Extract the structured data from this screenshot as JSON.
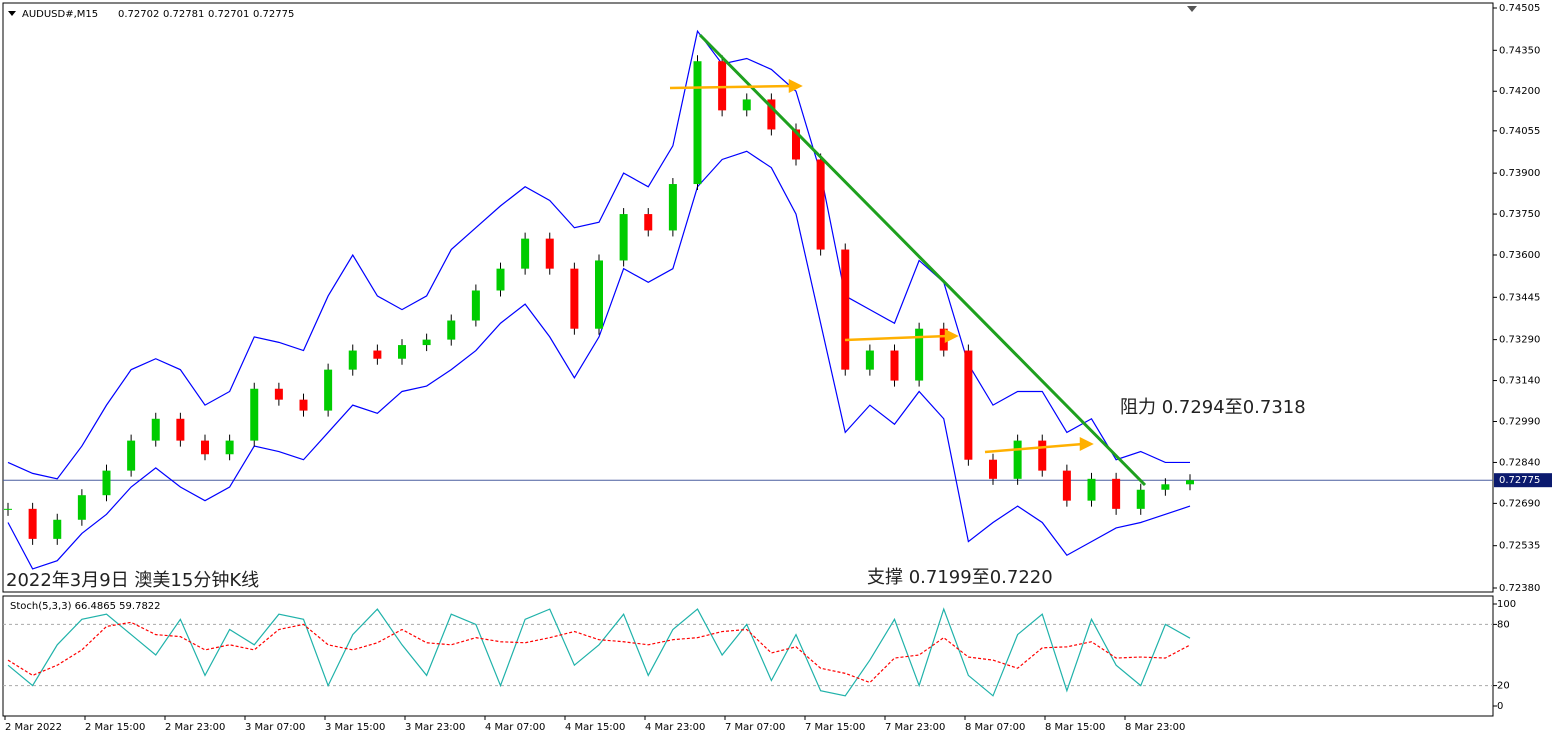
{
  "chart_data": [
    {
      "type": "candlestick",
      "title": "AUDUSD#,M15",
      "ohlc": [
        0.72702,
        0.72781,
        0.72701,
        0.72775
      ],
      "subtitle": "2022年3月9日 澳美15分钟K线",
      "annotations": [
        "阻力 0.7294至0.7318",
        "支撑 0.7199至0.7220"
      ],
      "last_price": 0.72775,
      "close": [
        0.7267,
        0.7256,
        0.7263,
        0.7272,
        0.7281,
        0.7292,
        0.73,
        0.7292,
        0.7287,
        0.7292,
        0.7311,
        0.7307,
        0.7303,
        0.7318,
        0.7325,
        0.7322,
        0.7327,
        0.7329,
        0.7336,
        0.7347,
        0.7355,
        0.7366,
        0.7355,
        0.7333,
        0.7358,
        0.7375,
        0.7369,
        0.7386,
        0.7431,
        0.7413,
        0.7417,
        0.7406,
        0.7395,
        0.7362,
        0.7318,
        0.7325,
        0.7314,
        0.7333,
        0.7325,
        0.7285,
        0.7278,
        0.7292,
        0.7281,
        0.727,
        0.7278,
        0.7267,
        0.7274,
        0.7276,
        0.72775
      ],
      "upper_band": [
        0.7284,
        0.728,
        0.7278,
        0.729,
        0.7305,
        0.7318,
        0.7322,
        0.7318,
        0.7305,
        0.731,
        0.733,
        0.7328,
        0.7325,
        0.7345,
        0.736,
        0.7345,
        0.734,
        0.7345,
        0.7362,
        0.737,
        0.7378,
        0.7385,
        0.738,
        0.737,
        0.7372,
        0.739,
        0.7385,
        0.74,
        0.7442,
        0.743,
        0.7432,
        0.7428,
        0.742,
        0.739,
        0.7345,
        0.734,
        0.7335,
        0.7358,
        0.735,
        0.732,
        0.7305,
        0.731,
        0.731,
        0.7295,
        0.73,
        0.7285,
        0.7288,
        0.7284,
        0.7284
      ],
      "lower_band": [
        0.7262,
        0.7245,
        0.7248,
        0.7258,
        0.7265,
        0.7275,
        0.7282,
        0.7275,
        0.727,
        0.7275,
        0.729,
        0.7288,
        0.7285,
        0.7295,
        0.7305,
        0.7302,
        0.731,
        0.7312,
        0.7318,
        0.7325,
        0.7335,
        0.7342,
        0.733,
        0.7315,
        0.733,
        0.7355,
        0.735,
        0.7355,
        0.7385,
        0.7395,
        0.7398,
        0.7392,
        0.7375,
        0.7335,
        0.7295,
        0.7305,
        0.7298,
        0.731,
        0.73,
        0.7255,
        0.7262,
        0.7268,
        0.7262,
        0.725,
        0.7255,
        0.726,
        0.7262,
        0.7265,
        0.7268
      ],
      "band_color": "#0000ff",
      "up_color": "#00cc00",
      "down_color": "#ff0000",
      "ylim": [
        0.7238,
        0.74505
      ],
      "yticks": [
        0.74505,
        {
          "value": 0.7435,
          "label": "0.74350"
        },
        {
          "value": 0.742,
          "label": "0.74200"
        },
        0.74055,
        {
          "value": 0.739,
          "label": "0.73900"
        },
        {
          "value": 0.7375,
          "label": "0.73750"
        },
        {
          "value": 0.736,
          "label": "0.73600"
        },
        0.73445,
        {
          "value": 0.7329,
          "label": "0.73290"
        },
        {
          "value": 0.7314,
          "label": "0.73140"
        },
        {
          "value": 0.7299,
          "label": "0.72990"
        },
        {
          "value": 0.7284,
          "label": "0.72840"
        },
        {
          "value": 0.7269,
          "label": "0.72690"
        },
        0.72535,
        {
          "value": 0.7238,
          "label": "0.72380"
        }
      ]
    },
    {
      "type": "line",
      "title": "Stoch(5,3,3) 66.4865 59.7822",
      "series": [
        {
          "color": "#20b2aa",
          "dash": false,
          "values": [
            40,
            20,
            60,
            85,
            90,
            70,
            50,
            85,
            30,
            75,
            60,
            90,
            85,
            20,
            70,
            95,
            60,
            30,
            90,
            80,
            20,
            85,
            95,
            40,
            60,
            90,
            30,
            75,
            95,
            50,
            80,
            25,
            70,
            15,
            10,
            45,
            85,
            20,
            95,
            30,
            10,
            70,
            90,
            15,
            85,
            40,
            20,
            80,
            66.5
          ]
        },
        {
          "color": "#ff0000",
          "dash": true,
          "values": [
            45,
            30,
            40,
            55,
            78,
            82,
            70,
            68,
            55,
            60,
            55,
            75,
            80,
            60,
            55,
            62,
            75,
            62,
            60,
            67,
            63,
            62,
            67,
            73,
            65,
            63,
            60,
            65,
            67,
            73,
            75,
            52,
            58,
            37,
            32,
            23,
            47,
            50,
            67,
            48,
            45,
            37,
            57,
            58,
            63,
            47,
            48,
            47,
            59.8
          ]
        }
      ],
      "ylim": [
        0,
        100
      ],
      "yticks": [
        100,
        80,
        20,
        0
      ],
      "levels": [
        80,
        20
      ],
      "x_labels": [
        "2 Mar 2022",
        "2 Mar 15:00",
        "2 Mar 23:00",
        "3 Mar 07:00",
        "3 Mar 15:00",
        "3 Mar 23:00",
        "4 Mar 07:00",
        "4 Mar 15:00",
        "4 Mar 23:00",
        "7 Mar 07:00",
        "7 Mar 15:00",
        "7 Mar 23:00",
        "8 Mar 07:00",
        "8 Mar 15:00",
        "8 Mar 23:00"
      ]
    }
  ]
}
